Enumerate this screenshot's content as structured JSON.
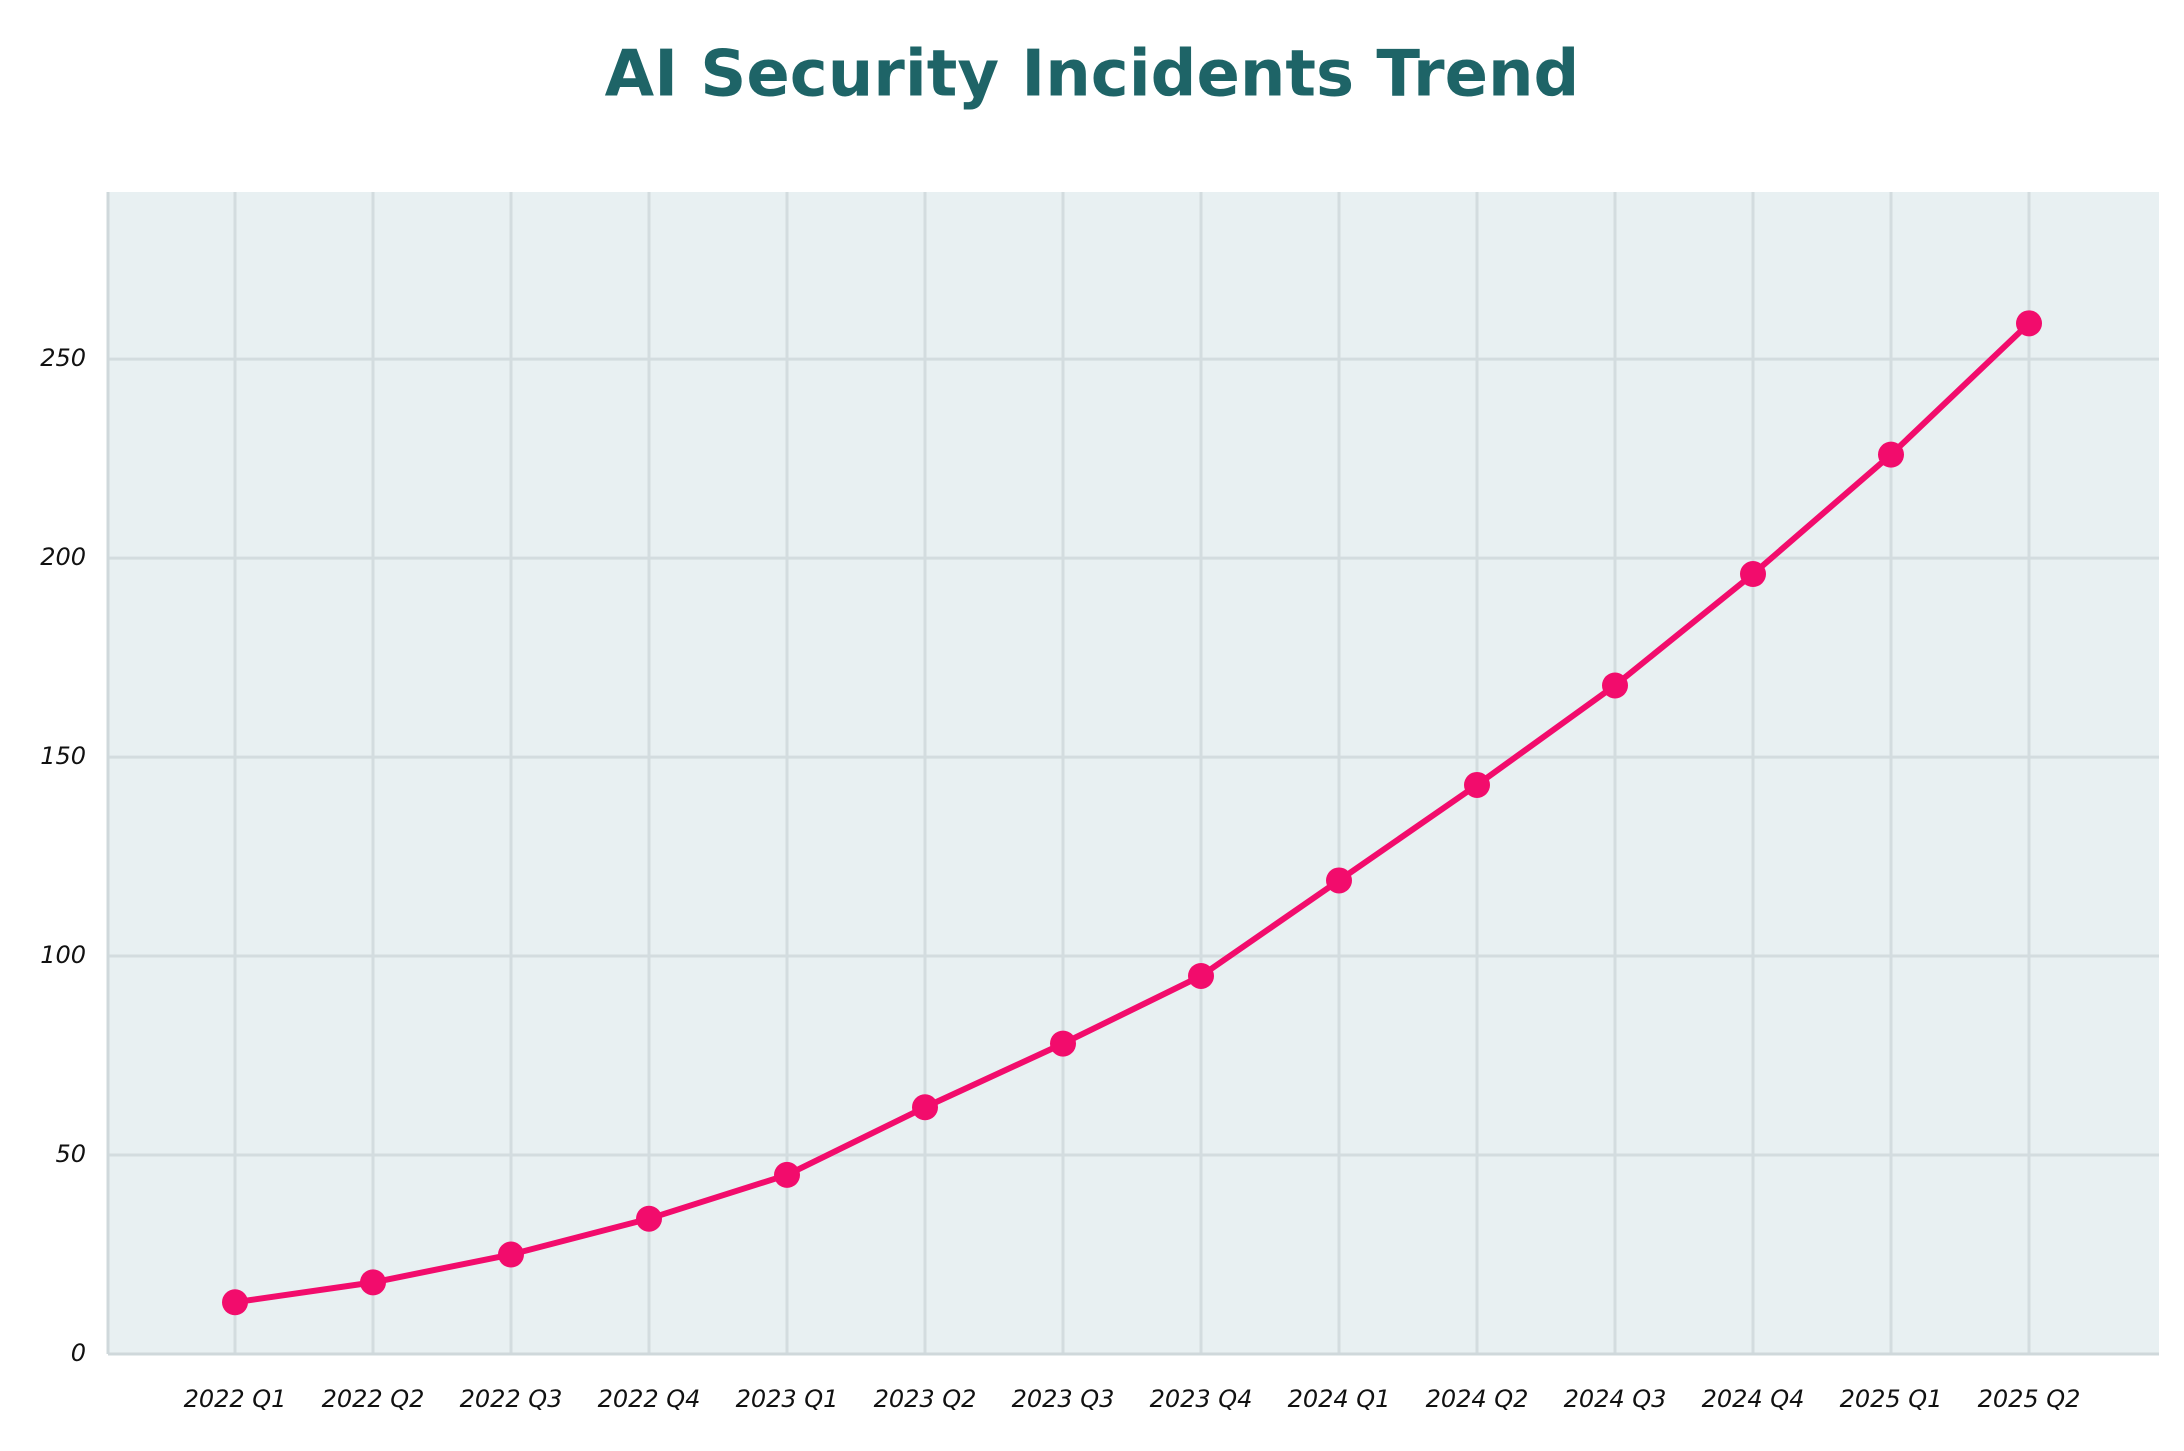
{
  "chart_data": {
    "type": "line",
    "title": "AI Security Incidents Trend",
    "categories": [
      "2022 Q1",
      "2022 Q2",
      "2022 Q3",
      "2022 Q4",
      "2023 Q1",
      "2023 Q2",
      "2023 Q3",
      "2023 Q4",
      "2024 Q1",
      "2024 Q2",
      "2024 Q3",
      "2024 Q4",
      "2025 Q1",
      "2025 Q2"
    ],
    "values": [
      13,
      18,
      25,
      34,
      45,
      62,
      78,
      95,
      119,
      143,
      168,
      196,
      226,
      259
    ],
    "color": "#f20c6c",
    "ylim": [
      0,
      292
    ],
    "yticks": [
      0,
      50,
      100,
      150,
      200,
      250
    ],
    "grid": true
  }
}
